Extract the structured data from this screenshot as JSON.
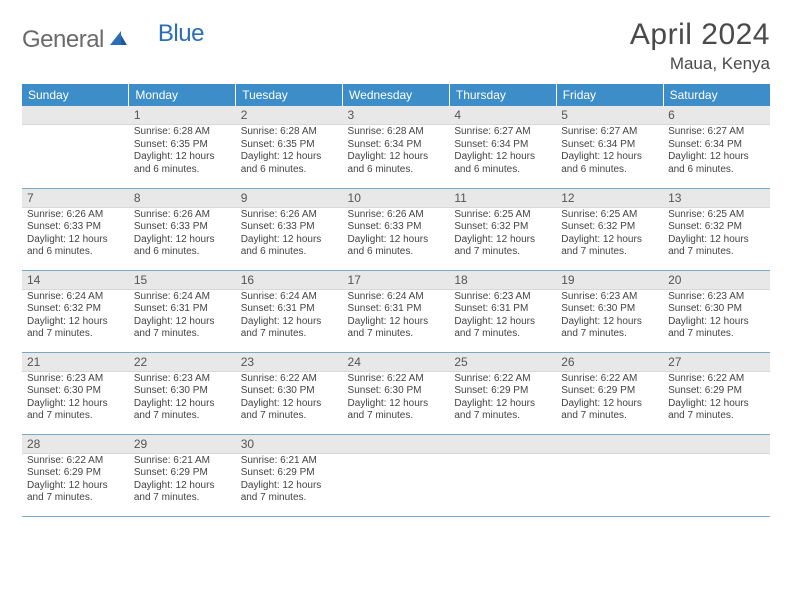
{
  "logo": {
    "part1": "General",
    "part2": "Blue"
  },
  "title": "April 2024",
  "location": "Maua, Kenya",
  "colors": {
    "header_bg": "#3c8dc8",
    "header_text": "#ffffff",
    "daynum_bg": "#e8e8e8",
    "row_border": "#7aa8c9",
    "logo_gray": "#6b6b6b",
    "logo_blue": "#2a6fb5"
  },
  "weekdays": [
    "Sunday",
    "Monday",
    "Tuesday",
    "Wednesday",
    "Thursday",
    "Friday",
    "Saturday"
  ],
  "startWeekday": 1,
  "daysInMonth": 30,
  "days": {
    "1": {
      "sunrise": "6:28 AM",
      "sunset": "6:35 PM",
      "daylight": "12 hours and 6 minutes."
    },
    "2": {
      "sunrise": "6:28 AM",
      "sunset": "6:35 PM",
      "daylight": "12 hours and 6 minutes."
    },
    "3": {
      "sunrise": "6:28 AM",
      "sunset": "6:34 PM",
      "daylight": "12 hours and 6 minutes."
    },
    "4": {
      "sunrise": "6:27 AM",
      "sunset": "6:34 PM",
      "daylight": "12 hours and 6 minutes."
    },
    "5": {
      "sunrise": "6:27 AM",
      "sunset": "6:34 PM",
      "daylight": "12 hours and 6 minutes."
    },
    "6": {
      "sunrise": "6:27 AM",
      "sunset": "6:34 PM",
      "daylight": "12 hours and 6 minutes."
    },
    "7": {
      "sunrise": "6:26 AM",
      "sunset": "6:33 PM",
      "daylight": "12 hours and 6 minutes."
    },
    "8": {
      "sunrise": "6:26 AM",
      "sunset": "6:33 PM",
      "daylight": "12 hours and 6 minutes."
    },
    "9": {
      "sunrise": "6:26 AM",
      "sunset": "6:33 PM",
      "daylight": "12 hours and 6 minutes."
    },
    "10": {
      "sunrise": "6:26 AM",
      "sunset": "6:33 PM",
      "daylight": "12 hours and 6 minutes."
    },
    "11": {
      "sunrise": "6:25 AM",
      "sunset": "6:32 PM",
      "daylight": "12 hours and 7 minutes."
    },
    "12": {
      "sunrise": "6:25 AM",
      "sunset": "6:32 PM",
      "daylight": "12 hours and 7 minutes."
    },
    "13": {
      "sunrise": "6:25 AM",
      "sunset": "6:32 PM",
      "daylight": "12 hours and 7 minutes."
    },
    "14": {
      "sunrise": "6:24 AM",
      "sunset": "6:32 PM",
      "daylight": "12 hours and 7 minutes."
    },
    "15": {
      "sunrise": "6:24 AM",
      "sunset": "6:31 PM",
      "daylight": "12 hours and 7 minutes."
    },
    "16": {
      "sunrise": "6:24 AM",
      "sunset": "6:31 PM",
      "daylight": "12 hours and 7 minutes."
    },
    "17": {
      "sunrise": "6:24 AM",
      "sunset": "6:31 PM",
      "daylight": "12 hours and 7 minutes."
    },
    "18": {
      "sunrise": "6:23 AM",
      "sunset": "6:31 PM",
      "daylight": "12 hours and 7 minutes."
    },
    "19": {
      "sunrise": "6:23 AM",
      "sunset": "6:30 PM",
      "daylight": "12 hours and 7 minutes."
    },
    "20": {
      "sunrise": "6:23 AM",
      "sunset": "6:30 PM",
      "daylight": "12 hours and 7 minutes."
    },
    "21": {
      "sunrise": "6:23 AM",
      "sunset": "6:30 PM",
      "daylight": "12 hours and 7 minutes."
    },
    "22": {
      "sunrise": "6:23 AM",
      "sunset": "6:30 PM",
      "daylight": "12 hours and 7 minutes."
    },
    "23": {
      "sunrise": "6:22 AM",
      "sunset": "6:30 PM",
      "daylight": "12 hours and 7 minutes."
    },
    "24": {
      "sunrise": "6:22 AM",
      "sunset": "6:30 PM",
      "daylight": "12 hours and 7 minutes."
    },
    "25": {
      "sunrise": "6:22 AM",
      "sunset": "6:29 PM",
      "daylight": "12 hours and 7 minutes."
    },
    "26": {
      "sunrise": "6:22 AM",
      "sunset": "6:29 PM",
      "daylight": "12 hours and 7 minutes."
    },
    "27": {
      "sunrise": "6:22 AM",
      "sunset": "6:29 PM",
      "daylight": "12 hours and 7 minutes."
    },
    "28": {
      "sunrise": "6:22 AM",
      "sunset": "6:29 PM",
      "daylight": "12 hours and 7 minutes."
    },
    "29": {
      "sunrise": "6:21 AM",
      "sunset": "6:29 PM",
      "daylight": "12 hours and 7 minutes."
    },
    "30": {
      "sunrise": "6:21 AM",
      "sunset": "6:29 PM",
      "daylight": "12 hours and 7 minutes."
    }
  },
  "labels": {
    "sunrise": "Sunrise:",
    "sunset": "Sunset:",
    "daylight": "Daylight:"
  }
}
